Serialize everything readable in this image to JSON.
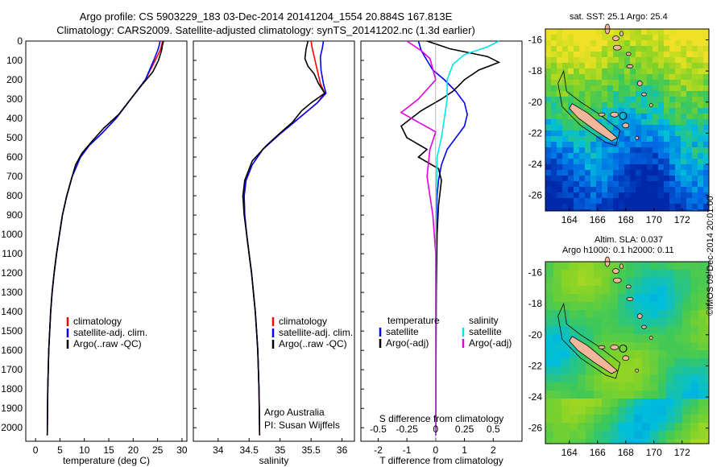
{
  "header": {
    "title_line1": "Argo profile: CS 5903229_183 03-Dec-2014 20141204_1554 20.884S 167.813E",
    "title_line2": "Climatology: CARS2009. Satellite-adjusted climatology: synTS_20141202.nc (1.3d earlier)"
  },
  "colors": {
    "climatology": "#ff0000",
    "satellite_adj": "#0000ff",
    "argo": "#000000",
    "sal_satellite": "#00e5e5",
    "sal_argo": "#e000e0",
    "land": "#f2b69a"
  },
  "chart_data": [
    {
      "type": "line",
      "name": "temperature",
      "xlabel": "temperature (deg C)",
      "ylabel": "",
      "xlim": [
        -2,
        31
      ],
      "ylim": [
        2070,
        0
      ],
      "xticks": [
        0,
        5,
        10,
        15,
        20,
        25,
        30
      ],
      "yticks": [
        0,
        100,
        200,
        300,
        400,
        500,
        600,
        700,
        800,
        900,
        1000,
        1100,
        1200,
        1300,
        1400,
        1500,
        1600,
        1700,
        1800,
        1900,
        2000
      ],
      "legend": [
        "climatology",
        "satellite-adj. clim.",
        "Argo(..raw -QC)"
      ],
      "series": [
        {
          "name": "climatology",
          "color": "#ff0000",
          "x": [
            26,
            25.8,
            25.5,
            24.5,
            22.5,
            19.5,
            16.5,
            13.5,
            11,
            9.2,
            8.2,
            7.5,
            6.4,
            5.5,
            4.9,
            4.3,
            3.8,
            3.4,
            3.1,
            2.9,
            2.7,
            2.5,
            2.4
          ],
          "y": [
            0,
            25,
            50,
            100,
            200,
            300,
            400,
            480,
            540,
            600,
            660,
            700,
            800,
            900,
            1000,
            1100,
            1200,
            1300,
            1400,
            1500,
            1600,
            1800,
            2040
          ]
        },
        {
          "name": "satellite-adj. clim.",
          "color": "#0000ff",
          "x": [
            25.5,
            25.3,
            25,
            24.2,
            22.5,
            19.5,
            16.5,
            13.5,
            11,
            9.2,
            8.2,
            7.5,
            6.4,
            5.5,
            4.9,
            4.3,
            3.8,
            3.4,
            3.1,
            2.9,
            2.7,
            2.5,
            2.4
          ],
          "y": [
            0,
            25,
            50,
            100,
            200,
            300,
            400,
            480,
            540,
            600,
            660,
            700,
            800,
            900,
            1000,
            1100,
            1200,
            1300,
            1400,
            1500,
            1600,
            1800,
            2000
          ]
        },
        {
          "name": "Argo(..raw -QC)",
          "color": "#000000",
          "x": [
            26.2,
            26,
            25.8,
            25.2,
            24,
            22,
            19.5,
            17,
            14,
            11.5,
            9.5,
            8.2,
            7.5,
            6.4,
            5.5,
            4.9,
            4.3,
            3.8,
            3.4,
            3.1,
            2.9,
            2.7,
            2.5,
            2.4
          ],
          "y": [
            0,
            20,
            50,
            100,
            160,
            220,
            300,
            380,
            450,
            520,
            580,
            640,
            700,
            800,
            900,
            1000,
            1100,
            1200,
            1300,
            1400,
            1500,
            1600,
            1800,
            2040
          ]
        }
      ]
    },
    {
      "type": "line",
      "name": "salinity",
      "xlabel": "salinity",
      "ylabel": "",
      "xlim": [
        33.6,
        36.2
      ],
      "ylim": [
        2070,
        0
      ],
      "xticks": [
        34,
        34.5,
        35,
        35.5,
        36
      ],
      "legend": [
        "climatology",
        "satellite-adj. clim.",
        "Argo(..raw -QC)"
      ],
      "annotation": [
        "Argo Australia",
        "PI: Susan Wijffels"
      ],
      "series": [
        {
          "name": "climatology",
          "color": "#ff0000",
          "x": [
            35.5,
            35.52,
            35.55,
            35.6,
            35.65,
            35.72,
            35.6,
            35.3,
            35.0,
            34.72,
            34.55,
            34.45,
            34.42,
            34.43,
            34.46,
            34.5,
            34.54,
            34.57,
            34.6,
            34.62,
            34.64,
            34.66,
            34.67
          ],
          "y": [
            0,
            40,
            80,
            150,
            220,
            270,
            320,
            400,
            480,
            560,
            640,
            720,
            800,
            900,
            1000,
            1100,
            1200,
            1300,
            1400,
            1500,
            1600,
            1800,
            2040
          ]
        },
        {
          "name": "satellite-adj. clim.",
          "color": "#0000ff",
          "x": [
            35.7,
            35.68,
            35.65,
            35.66,
            35.7,
            35.74,
            35.6,
            35.3,
            35.0,
            34.72,
            34.55,
            34.45,
            34.42,
            34.43,
            34.46,
            34.5,
            34.54,
            34.57,
            34.6,
            34.62,
            34.64,
            34.66,
            34.67
          ],
          "y": [
            0,
            40,
            80,
            150,
            220,
            270,
            320,
            400,
            480,
            560,
            640,
            720,
            800,
            900,
            1000,
            1100,
            1200,
            1300,
            1400,
            1500,
            1600,
            1800,
            2000
          ]
        },
        {
          "name": "Argo(..raw -QC)",
          "color": "#000000",
          "x": [
            35.45,
            35.42,
            35.4,
            35.45,
            35.55,
            35.62,
            35.72,
            35.5,
            35.35,
            35.2,
            35.02,
            34.78,
            34.55,
            34.43,
            34.4,
            34.42,
            34.46,
            34.5,
            34.54,
            34.57,
            34.6,
            34.62,
            34.64,
            34.66,
            34.67
          ],
          "y": [
            0,
            40,
            90,
            130,
            170,
            220,
            270,
            320,
            360,
            420,
            470,
            540,
            620,
            720,
            800,
            900,
            1000,
            1100,
            1200,
            1300,
            1400,
            1500,
            1600,
            1800,
            2040
          ]
        }
      ]
    },
    {
      "type": "line",
      "name": "difference",
      "xlabel": "T difference from climatology",
      "xlabel_top": "S difference from climatology",
      "xlim": [
        -2.6,
        3.0
      ],
      "ylim": [
        2070,
        0
      ],
      "xticks": [
        -2,
        -1,
        0,
        1,
        2
      ],
      "xtick_labels_S": [
        "-0.5",
        "-0.25",
        "0",
        "0.25",
        "0.5"
      ],
      "legend_temperature": [
        "temperature",
        "satellite",
        "Argo(-adj)"
      ],
      "legend_salinity": [
        "salinity",
        "satellite",
        "Argo(-adj)"
      ],
      "series": [
        {
          "name": "temperature satellite",
          "color": "#0000ff",
          "x": [
            -0.6,
            -0.5,
            -0.3,
            -0.1,
            0.3,
            0.7,
            1.0,
            1.1,
            1.0,
            0.7,
            0.4,
            0.2,
            0.1,
            0.05,
            0.02,
            0,
            0,
            0,
            0
          ],
          "y": [
            0,
            50,
            100,
            150,
            200,
            260,
            320,
            380,
            440,
            500,
            560,
            640,
            720,
            800,
            1000,
            1200,
            1500,
            1800,
            2000
          ]
        },
        {
          "name": "temperature Argo(-adj)",
          "color": "#000000",
          "x": [
            -0.3,
            0.5,
            1.8,
            2.2,
            1.5,
            1.0,
            0.6,
            0.2,
            -0.5,
            -1.2,
            -1.0,
            -0.3,
            -0.6,
            0.1,
            0.2,
            0.1,
            0.05,
            0.02,
            0
          ],
          "y": [
            0,
            40,
            80,
            110,
            150,
            200,
            260,
            300,
            360,
            440,
            500,
            560,
            600,
            660,
            720,
            850,
            1000,
            1300,
            2040
          ]
        },
        {
          "name": "salinity satellite",
          "color": "#00e5e5",
          "x": [
            2.2,
            1.8,
            1.0,
            0.6,
            0.4,
            0.4,
            0.3,
            0.2,
            0.05,
            0.02,
            0.01,
            0.0,
            0.0,
            0.0
          ],
          "y": [
            0,
            30,
            70,
            120,
            200,
            300,
            400,
            500,
            600,
            800,
            1000,
            1300,
            1700,
            2040
          ]
        },
        {
          "name": "salinity Argo(-adj)",
          "color": "#e000e0",
          "x": [
            -1.0,
            -0.5,
            -0.2,
            0.0,
            -0.6,
            -1.2,
            -0.6,
            0.0,
            -0.2,
            -0.3,
            -0.2,
            -0.1,
            0.0,
            0.0,
            0.0
          ],
          "y": [
            0,
            50,
            90,
            200,
            300,
            370,
            420,
            470,
            560,
            700,
            800,
            900,
            1100,
            1500,
            2040
          ]
        }
      ]
    },
    {
      "type": "heatmap",
      "name": "sst_map",
      "title": "sat. SST: 25.1 Argo: 25.4",
      "xlim": [
        162.3,
        173.9
      ],
      "ylim": [
        -27.0,
        -15.3
      ],
      "xticks": [
        164,
        166,
        168,
        170,
        172
      ],
      "yticks": [
        -16,
        -18,
        -20,
        -22,
        -24,
        -26
      ],
      "argo_position": [
        167.813,
        -20.884
      ]
    },
    {
      "type": "heatmap",
      "name": "sla_map",
      "title_line1": "Altim. SLA: 0.037",
      "title_line2": "Argo h1000: 0.1 h2000: 0.11",
      "xlim": [
        162.3,
        173.9
      ],
      "ylim": [
        -27.0,
        -15.3
      ],
      "xticks": [
        164,
        166,
        168,
        170,
        172
      ],
      "yticks": [
        -16,
        -18,
        -20,
        -22,
        -24,
        -26
      ],
      "argo_position": [
        167.813,
        -20.884
      ]
    }
  ],
  "footer": {
    "stamp": "©IMOS 09-Dec-2014 20:01:00"
  }
}
